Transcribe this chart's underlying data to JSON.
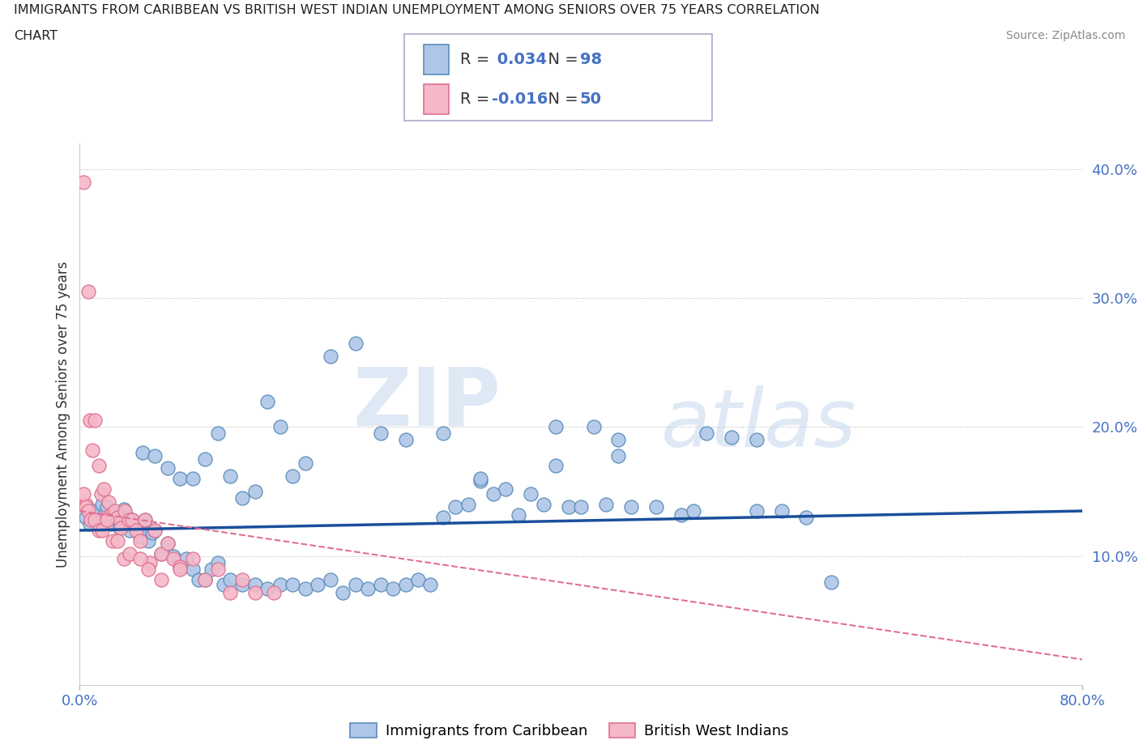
{
  "title_line1": "IMMIGRANTS FROM CARIBBEAN VS BRITISH WEST INDIAN UNEMPLOYMENT AMONG SENIORS OVER 75 YEARS CORRELATION",
  "title_line2": "CHART",
  "source_text": "Source: ZipAtlas.com",
  "ylabel": "Unemployment Among Seniors over 75 years",
  "x_min": 0.0,
  "x_max": 0.8,
  "y_min": 0.0,
  "y_max": 0.42,
  "blue_color": "#AEC6E8",
  "blue_edge_color": "#5B8DB8",
  "pink_color": "#F4B8C8",
  "pink_edge_color": "#E07090",
  "blue_line_color": "#1A4F9C",
  "pink_line_color": "#E07090",
  "R_blue": 0.034,
  "N_blue": 98,
  "R_pink": -0.016,
  "N_pink": 50,
  "legend_label_blue": "Immigrants from Caribbean",
  "legend_label_pink": "British West Indians",
  "watermark_zip": "ZIP",
  "watermark_atlas": "atlas",
  "blue_scatter_x": [
    0.005,
    0.008,
    0.01,
    0.015,
    0.018,
    0.02,
    0.022,
    0.025,
    0.028,
    0.03,
    0.032,
    0.035,
    0.038,
    0.04,
    0.042,
    0.045,
    0.048,
    0.05,
    0.052,
    0.055,
    0.058,
    0.06,
    0.065,
    0.07,
    0.075,
    0.08,
    0.085,
    0.09,
    0.095,
    0.1,
    0.105,
    0.11,
    0.115,
    0.12,
    0.13,
    0.14,
    0.15,
    0.16,
    0.17,
    0.18,
    0.19,
    0.2,
    0.21,
    0.22,
    0.23,
    0.24,
    0.25,
    0.26,
    0.27,
    0.28,
    0.29,
    0.3,
    0.31,
    0.32,
    0.33,
    0.34,
    0.35,
    0.36,
    0.37,
    0.38,
    0.39,
    0.4,
    0.41,
    0.42,
    0.43,
    0.44,
    0.46,
    0.48,
    0.5,
    0.52,
    0.54,
    0.56,
    0.58,
    0.6,
    0.05,
    0.06,
    0.07,
    0.08,
    0.09,
    0.1,
    0.11,
    0.12,
    0.13,
    0.14,
    0.15,
    0.16,
    0.17,
    0.18,
    0.2,
    0.22,
    0.24,
    0.26,
    0.29,
    0.32,
    0.38,
    0.43,
    0.49,
    0.54
  ],
  "blue_scatter_y": [
    0.13,
    0.125,
    0.135,
    0.128,
    0.14,
    0.132,
    0.138,
    0.125,
    0.133,
    0.128,
    0.122,
    0.136,
    0.13,
    0.12,
    0.128,
    0.122,
    0.115,
    0.12,
    0.128,
    0.112,
    0.118,
    0.12,
    0.102,
    0.11,
    0.1,
    0.092,
    0.098,
    0.09,
    0.082,
    0.082,
    0.09,
    0.095,
    0.078,
    0.082,
    0.078,
    0.078,
    0.075,
    0.078,
    0.078,
    0.075,
    0.078,
    0.082,
    0.072,
    0.078,
    0.075,
    0.078,
    0.075,
    0.078,
    0.082,
    0.078,
    0.13,
    0.138,
    0.14,
    0.158,
    0.148,
    0.152,
    0.132,
    0.148,
    0.14,
    0.17,
    0.138,
    0.138,
    0.2,
    0.14,
    0.178,
    0.138,
    0.138,
    0.132,
    0.195,
    0.192,
    0.19,
    0.135,
    0.13,
    0.08,
    0.18,
    0.178,
    0.168,
    0.16,
    0.16,
    0.175,
    0.195,
    0.162,
    0.145,
    0.15,
    0.22,
    0.2,
    0.162,
    0.172,
    0.255,
    0.265,
    0.195,
    0.19,
    0.195,
    0.16,
    0.2,
    0.19,
    0.135,
    0.135
  ],
  "pink_scatter_x": [
    0.003,
    0.005,
    0.007,
    0.008,
    0.01,
    0.012,
    0.015,
    0.017,
    0.019,
    0.021,
    0.023,
    0.025,
    0.028,
    0.03,
    0.033,
    0.036,
    0.039,
    0.042,
    0.045,
    0.048,
    0.052,
    0.056,
    0.06,
    0.065,
    0.07,
    0.075,
    0.08,
    0.09,
    0.1,
    0.11,
    0.12,
    0.13,
    0.14,
    0.155,
    0.003,
    0.005,
    0.007,
    0.009,
    0.012,
    0.015,
    0.018,
    0.022,
    0.026,
    0.03,
    0.035,
    0.04,
    0.048,
    0.055,
    0.065,
    0.08
  ],
  "pink_scatter_y": [
    0.39,
    0.14,
    0.305,
    0.205,
    0.182,
    0.205,
    0.17,
    0.148,
    0.152,
    0.13,
    0.142,
    0.132,
    0.135,
    0.13,
    0.122,
    0.135,
    0.128,
    0.128,
    0.12,
    0.112,
    0.128,
    0.095,
    0.12,
    0.102,
    0.11,
    0.098,
    0.092,
    0.098,
    0.082,
    0.09,
    0.072,
    0.082,
    0.072,
    0.072,
    0.148,
    0.138,
    0.135,
    0.128,
    0.128,
    0.12,
    0.12,
    0.128,
    0.112,
    0.112,
    0.098,
    0.102,
    0.098,
    0.09,
    0.082,
    0.09
  ],
  "blue_regline_x": [
    0.0,
    0.8
  ],
  "blue_regline_y": [
    0.12,
    0.135
  ],
  "pink_regline_x": [
    0.0,
    0.8
  ],
  "pink_regline_y": [
    0.135,
    0.02
  ]
}
